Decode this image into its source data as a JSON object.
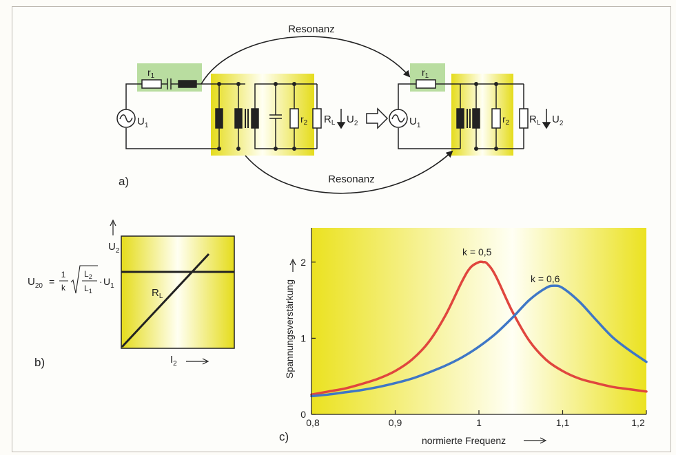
{
  "panel_a": {
    "label": "a)",
    "resonance_top": "Resonanz",
    "resonance_bottom": "Resonanz",
    "left_circuit": {
      "source": {
        "main": "U",
        "sub": "1"
      },
      "r1": {
        "main": "r",
        "sub": "1"
      },
      "r2": {
        "main": "r",
        "sub": "2"
      },
      "load": {
        "main": "R",
        "sub": "L"
      },
      "output": {
        "main": "U",
        "sub": "2"
      }
    },
    "right_circuit": {
      "source": {
        "main": "U",
        "sub": "1"
      },
      "r1": {
        "main": "r",
        "sub": "1"
      },
      "r2": {
        "main": "r",
        "sub": "2"
      },
      "load": {
        "main": "R",
        "sub": "L"
      },
      "output": {
        "main": "U",
        "sub": "2"
      }
    }
  },
  "panel_b": {
    "label": "b)",
    "formula": {
      "lhs_main": "U",
      "lhs_sub": "20",
      "equals": "=",
      "frac_num": "1",
      "frac_den": "k",
      "sqrt_num_main": "L",
      "sqrt_num_sub": "2",
      "sqrt_den_main": "L",
      "sqrt_den_sub": "1",
      "times": "·",
      "rhs_main": "U",
      "rhs_sub": "1"
    },
    "y_axis": {
      "main": "U",
      "sub": "2"
    },
    "x_axis": {
      "main": "I",
      "sub": "2"
    },
    "line_label": {
      "main": "R",
      "sub": "L"
    }
  },
  "panel_c": {
    "label": "c)",
    "chart_data": {
      "type": "line",
      "xlabel": "normierte Frequenz",
      "ylabel": "Spannungsverstärkung",
      "xlim": [
        0.8,
        1.2
      ],
      "ylim": [
        0,
        2.45
      ],
      "x_ticks": [
        0.8,
        0.9,
        1.0,
        1.1,
        1.2
      ],
      "x_tick_labels": [
        "0,8",
        "0,9",
        "1",
        "1,1",
        "1,2"
      ],
      "y_ticks": [
        0,
        1,
        2
      ],
      "y_tick_labels": [
        "0",
        "1",
        "2"
      ],
      "grid": false,
      "series": [
        {
          "name": "k = 0,5",
          "color": "#e0463e",
          "x": [
            0.8,
            0.82,
            0.84,
            0.86,
            0.88,
            0.9,
            0.92,
            0.94,
            0.96,
            0.98,
            0.99,
            1.0,
            1.005,
            1.01,
            1.02,
            1.04,
            1.06,
            1.08,
            1.1,
            1.12,
            1.14,
            1.16,
            1.18,
            1.2
          ],
          "y": [
            0.26,
            0.3,
            0.34,
            0.4,
            0.47,
            0.57,
            0.72,
            0.95,
            1.3,
            1.75,
            1.93,
            2.0,
            2.0,
            1.98,
            1.82,
            1.35,
            0.97,
            0.72,
            0.57,
            0.47,
            0.41,
            0.36,
            0.33,
            0.3
          ]
        },
        {
          "name": "k = 0,6",
          "color": "#3f77c6",
          "x": [
            0.8,
            0.82,
            0.84,
            0.86,
            0.88,
            0.9,
            0.92,
            0.94,
            0.96,
            0.98,
            1.0,
            1.02,
            1.04,
            1.06,
            1.08,
            1.09,
            1.1,
            1.12,
            1.14,
            1.16,
            1.18,
            1.2
          ],
          "y": [
            0.24,
            0.26,
            0.29,
            0.32,
            0.36,
            0.41,
            0.47,
            0.55,
            0.64,
            0.75,
            0.89,
            1.06,
            1.27,
            1.5,
            1.66,
            1.69,
            1.66,
            1.48,
            1.24,
            1.01,
            0.84,
            0.69
          ]
        }
      ]
    }
  }
}
